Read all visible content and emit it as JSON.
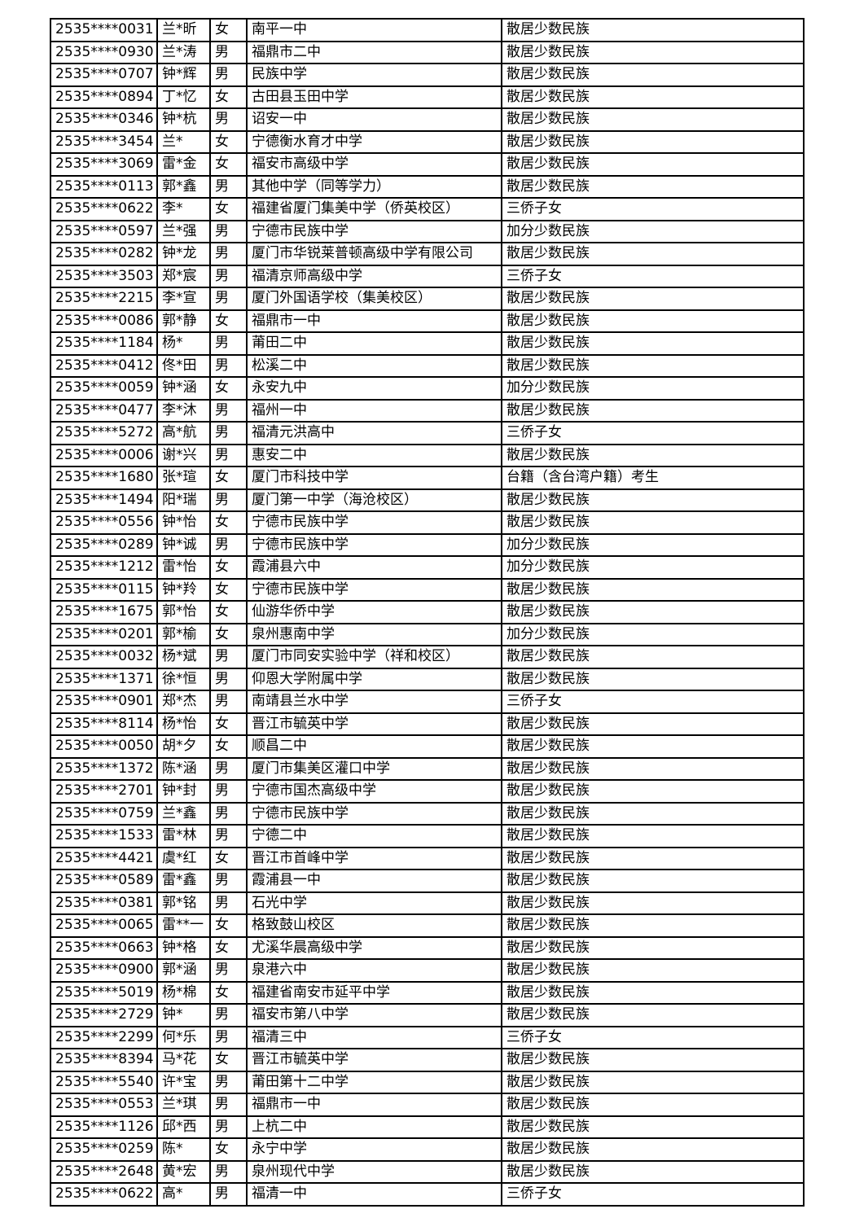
{
  "palette": {
    "background": "#ffffff",
    "border": "#000000",
    "text": "#000000"
  },
  "table": {
    "rows": [
      {
        "id": "2535****0031",
        "name": "兰*昕",
        "gender": "女",
        "school": "南平一中",
        "category": "散居少数民族"
      },
      {
        "id": "2535****0930",
        "name": "兰*涛",
        "gender": "男",
        "school": "福鼎市二中",
        "category": "散居少数民族"
      },
      {
        "id": "2535****0707",
        "name": "钟*辉",
        "gender": "男",
        "school": "民族中学",
        "category": "散居少数民族"
      },
      {
        "id": "2535****0894",
        "name": "丁*忆",
        "gender": "女",
        "school": "古田县玉田中学",
        "category": "散居少数民族"
      },
      {
        "id": "2535****0346",
        "name": "钟*杭",
        "gender": "男",
        "school": "诏安一中",
        "category": "散居少数民族"
      },
      {
        "id": "2535****3454",
        "name": "兰*",
        "gender": "女",
        "school": "宁德衡水育才中学",
        "category": "散居少数民族"
      },
      {
        "id": "2535****3069",
        "name": "雷*金",
        "gender": "女",
        "school": "福安市高级中学",
        "category": "散居少数民族"
      },
      {
        "id": "2535****0113",
        "name": "郭*鑫",
        "gender": "男",
        "school": "其他中学（同等学力）",
        "category": "散居少数民族"
      },
      {
        "id": "2535****0622",
        "name": "李*",
        "gender": "女",
        "school": "福建省厦门集美中学（侨英校区）",
        "category": "三侨子女"
      },
      {
        "id": "2535****0597",
        "name": "兰*强",
        "gender": "男",
        "school": "宁德市民族中学",
        "category": "加分少数民族"
      },
      {
        "id": "2535****0282",
        "name": "钟*龙",
        "gender": "男",
        "school": "厦门市华锐莱普顿高级中学有限公司",
        "category": "散居少数民族"
      },
      {
        "id": "2535****3503",
        "name": "郑*宸",
        "gender": "男",
        "school": "福清京师高级中学",
        "category": "三侨子女"
      },
      {
        "id": "2535****2215",
        "name": "李*宣",
        "gender": "男",
        "school": "厦门外国语学校（集美校区）",
        "category": "散居少数民族"
      },
      {
        "id": "2535****0086",
        "name": "郭*静",
        "gender": "女",
        "school": "福鼎市一中",
        "category": "散居少数民族"
      },
      {
        "id": "2535****1184",
        "name": "杨*",
        "gender": "男",
        "school": "莆田二中",
        "category": "散居少数民族"
      },
      {
        "id": "2535****0412",
        "name": "佟*田",
        "gender": "男",
        "school": "松溪二中",
        "category": "散居少数民族"
      },
      {
        "id": "2535****0059",
        "name": "钟*涵",
        "gender": "女",
        "school": "永安九中",
        "category": "加分少数民族"
      },
      {
        "id": "2535****0477",
        "name": "李*沐",
        "gender": "男",
        "school": "福州一中",
        "category": "散居少数民族"
      },
      {
        "id": "2535****5272",
        "name": "高*航",
        "gender": "男",
        "school": "福清元洪高中",
        "category": "三侨子女"
      },
      {
        "id": "2535****0006",
        "name": "谢*兴",
        "gender": "男",
        "school": "惠安二中",
        "category": "散居少数民族"
      },
      {
        "id": "2535****1680",
        "name": "张*瑄",
        "gender": "女",
        "school": "厦门市科技中学",
        "category": "台籍（含台湾户籍）考生"
      },
      {
        "id": "2535****1494",
        "name": "阳*瑞",
        "gender": "男",
        "school": "厦门第一中学（海沧校区）",
        "category": "散居少数民族"
      },
      {
        "id": "2535****0556",
        "name": "钟*怡",
        "gender": "女",
        "school": "宁德市民族中学",
        "category": "散居少数民族"
      },
      {
        "id": "2535****0289",
        "name": "钟*诚",
        "gender": "男",
        "school": "宁德市民族中学",
        "category": "加分少数民族"
      },
      {
        "id": "2535****1212",
        "name": "雷*怡",
        "gender": "女",
        "school": "霞浦县六中",
        "category": "加分少数民族"
      },
      {
        "id": "2535****0115",
        "name": "钟*羚",
        "gender": "女",
        "school": "宁德市民族中学",
        "category": "散居少数民族"
      },
      {
        "id": "2535****1675",
        "name": "郭*怡",
        "gender": "女",
        "school": "仙游华侨中学",
        "category": "散居少数民族"
      },
      {
        "id": "2535****0201",
        "name": "郭*榆",
        "gender": "女",
        "school": "泉州惠南中学",
        "category": "加分少数民族"
      },
      {
        "id": "2535****0032",
        "name": "杨*斌",
        "gender": "男",
        "school": "厦门市同安实验中学（祥和校区）",
        "category": "散居少数民族"
      },
      {
        "id": "2535****1371",
        "name": "徐*恒",
        "gender": "男",
        "school": "仰恩大学附属中学",
        "category": "散居少数民族"
      },
      {
        "id": "2535****0901",
        "name": "郑*杰",
        "gender": "男",
        "school": "南靖县兰水中学",
        "category": "三侨子女"
      },
      {
        "id": "2535****8114",
        "name": "杨*怡",
        "gender": "女",
        "school": "晋江市毓英中学",
        "category": "散居少数民族"
      },
      {
        "id": "2535****0050",
        "name": "胡*夕",
        "gender": "女",
        "school": "顺昌二中",
        "category": "散居少数民族"
      },
      {
        "id": "2535****1372",
        "name": "陈*涵",
        "gender": "男",
        "school": "厦门市集美区灌口中学",
        "category": "散居少数民族"
      },
      {
        "id": "2535****2701",
        "name": "钟*封",
        "gender": "男",
        "school": "宁德市国杰高级中学",
        "category": "散居少数民族"
      },
      {
        "id": "2535****0759",
        "name": "兰*鑫",
        "gender": "男",
        "school": "宁德市民族中学",
        "category": "散居少数民族"
      },
      {
        "id": "2535****1533",
        "name": "雷*林",
        "gender": "男",
        "school": "宁德二中",
        "category": "散居少数民族"
      },
      {
        "id": "2535****4421",
        "name": "虞*红",
        "gender": "女",
        "school": "晋江市首峰中学",
        "category": "散居少数民族"
      },
      {
        "id": "2535****0589",
        "name": "雷*鑫",
        "gender": "男",
        "school": "霞浦县一中",
        "category": "散居少数民族"
      },
      {
        "id": "2535****0381",
        "name": "郭*铭",
        "gender": "男",
        "school": "石光中学",
        "category": "散居少数民族"
      },
      {
        "id": "2535****0065",
        "name": "雷**一",
        "gender": "女",
        "school": "格致鼓山校区",
        "category": "散居少数民族"
      },
      {
        "id": "2535****0663",
        "name": "钟*格",
        "gender": "女",
        "school": "尤溪华晨高级中学",
        "category": "散居少数民族"
      },
      {
        "id": "2535****0900",
        "name": "郭*涵",
        "gender": "男",
        "school": "泉港六中",
        "category": "散居少数民族"
      },
      {
        "id": "2535****5019",
        "name": "杨*棉",
        "gender": "女",
        "school": "福建省南安市延平中学",
        "category": "散居少数民族"
      },
      {
        "id": "2535****2729",
        "name": "钟*",
        "gender": "男",
        "school": "福安市第八中学",
        "category": "散居少数民族"
      },
      {
        "id": "2535****2299",
        "name": "何*乐",
        "gender": "男",
        "school": "福清三中",
        "category": "三侨子女"
      },
      {
        "id": "2535****8394",
        "name": "马*花",
        "gender": "女",
        "school": "晋江市毓英中学",
        "category": "散居少数民族"
      },
      {
        "id": "2535****5540",
        "name": "许*宝",
        "gender": "男",
        "school": "莆田第十二中学",
        "category": "散居少数民族"
      },
      {
        "id": "2535****0553",
        "name": "兰*琪",
        "gender": "男",
        "school": "福鼎市一中",
        "category": "散居少数民族"
      },
      {
        "id": "2535****1126",
        "name": "邱*西",
        "gender": "男",
        "school": "上杭二中",
        "category": "散居少数民族"
      },
      {
        "id": "2535****0259",
        "name": "陈*",
        "gender": "女",
        "school": "永宁中学",
        "category": "散居少数民族"
      },
      {
        "id": "2535****2648",
        "name": "黄*宏",
        "gender": "男",
        "school": "泉州现代中学",
        "category": "散居少数民族"
      },
      {
        "id": "2535****0622",
        "name": "高*",
        "gender": "男",
        "school": "福清一中",
        "category": "三侨子女"
      }
    ]
  }
}
